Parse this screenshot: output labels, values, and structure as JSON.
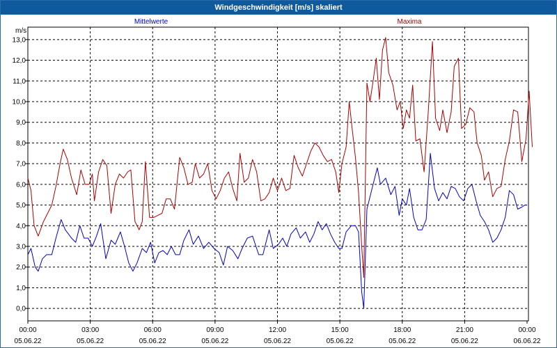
{
  "window": {
    "title": "Windgeschwindigkeit [m/s] skaliert"
  },
  "chart_data": {
    "type": "line",
    "title": "Windgeschwindigkeit [m/s] skaliert",
    "ylabel": "m/s",
    "ylim": [
      -0.6,
      13.6
    ],
    "yticks": [
      "0,0",
      "1,0",
      "2,0",
      "3,0",
      "4,0",
      "5,0",
      "6,0",
      "7,0",
      "8,0",
      "9,0",
      "10,0",
      "11,0",
      "12,0",
      "13,0"
    ],
    "xticks": [
      {
        "time": "00:00",
        "date": "05.06.22"
      },
      {
        "time": "03:00",
        "date": "05.06.22"
      },
      {
        "time": "06:00",
        "date": "05.06.22"
      },
      {
        "time": "09:00",
        "date": "05.06.22"
      },
      {
        "time": "12:00",
        "date": "05.06.22"
      },
      {
        "time": "15:00",
        "date": "05.06.22"
      },
      {
        "time": "18:00",
        "date": "05.06.22"
      },
      {
        "time": "21:00",
        "date": "05.06.22"
      },
      {
        "time": "00:00",
        "date": "06.06.22"
      }
    ],
    "xlim_hours": [
      0,
      24
    ],
    "grid": true,
    "legend_placement": "top",
    "series": [
      {
        "name": "Mittelwerte",
        "color": "#0000cc",
        "points": [
          [
            0.0,
            2.6
          ],
          [
            0.15,
            2.9
          ],
          [
            0.35,
            2.0
          ],
          [
            0.5,
            1.8
          ],
          [
            0.7,
            2.4
          ],
          [
            0.9,
            2.6
          ],
          [
            1.15,
            2.6
          ],
          [
            1.35,
            3.4
          ],
          [
            1.6,
            4.3
          ],
          [
            1.8,
            3.8
          ],
          [
            2.1,
            3.4
          ],
          [
            2.3,
            3.2
          ],
          [
            2.5,
            4.0
          ],
          [
            2.7,
            3.4
          ],
          [
            2.9,
            3.4
          ],
          [
            3.1,
            3.0
          ],
          [
            3.3,
            3.5
          ],
          [
            3.5,
            4.1
          ],
          [
            3.75,
            2.4
          ],
          [
            4.0,
            3.3
          ],
          [
            4.2,
            3.1
          ],
          [
            4.45,
            3.7
          ],
          [
            4.65,
            3.0
          ],
          [
            4.85,
            2.2
          ],
          [
            5.05,
            1.8
          ],
          [
            5.25,
            2.2
          ],
          [
            5.5,
            2.9
          ],
          [
            5.7,
            2.7
          ],
          [
            5.9,
            3.2
          ],
          [
            6.1,
            2.2
          ],
          [
            6.3,
            2.7
          ],
          [
            6.5,
            2.8
          ],
          [
            6.7,
            2.6
          ],
          [
            6.9,
            3.0
          ],
          [
            7.1,
            2.6
          ],
          [
            7.3,
            2.6
          ],
          [
            7.5,
            3.3
          ],
          [
            7.75,
            3.8
          ],
          [
            7.95,
            3.1
          ],
          [
            8.2,
            3.5
          ],
          [
            8.45,
            2.9
          ],
          [
            8.7,
            3.2
          ],
          [
            8.95,
            2.9
          ],
          [
            9.2,
            2.7
          ],
          [
            9.4,
            2.1
          ],
          [
            9.6,
            3.0
          ],
          [
            9.85,
            2.8
          ],
          [
            10.1,
            2.4
          ],
          [
            10.3,
            2.9
          ],
          [
            10.55,
            3.4
          ],
          [
            10.8,
            3.5
          ],
          [
            11.1,
            2.6
          ],
          [
            11.3,
            2.6
          ],
          [
            11.6,
            3.8
          ],
          [
            11.8,
            2.9
          ],
          [
            12.05,
            3.1
          ],
          [
            12.25,
            3.4
          ],
          [
            12.45,
            3.0
          ],
          [
            12.65,
            3.6
          ],
          [
            12.9,
            3.9
          ],
          [
            13.1,
            3.4
          ],
          [
            13.35,
            3.7
          ],
          [
            13.55,
            3.2
          ],
          [
            13.75,
            3.6
          ],
          [
            13.95,
            4.2
          ],
          [
            14.15,
            3.8
          ],
          [
            14.35,
            4.1
          ],
          [
            14.55,
            3.6
          ],
          [
            14.75,
            3.2
          ],
          [
            14.95,
            2.9
          ],
          [
            15.1,
            2.9
          ],
          [
            15.3,
            3.7
          ],
          [
            15.55,
            4.0
          ],
          [
            15.75,
            4.0
          ],
          [
            15.9,
            3.7
          ],
          [
            16.05,
            0.8
          ],
          [
            16.15,
            0.0
          ],
          [
            16.3,
            4.8
          ],
          [
            16.55,
            5.8
          ],
          [
            16.8,
            6.8
          ],
          [
            16.95,
            6.0
          ],
          [
            17.2,
            6.3
          ],
          [
            17.45,
            5.5
          ],
          [
            17.65,
            5.9
          ],
          [
            17.85,
            4.5
          ],
          [
            18.0,
            5.3
          ],
          [
            18.2,
            5.0
          ],
          [
            18.35,
            5.8
          ],
          [
            18.55,
            4.4
          ],
          [
            18.75,
            3.8
          ],
          [
            18.95,
            3.8
          ],
          [
            19.15,
            4.3
          ],
          [
            19.35,
            7.5
          ],
          [
            19.55,
            5.8
          ],
          [
            19.75,
            5.2
          ],
          [
            19.95,
            5.6
          ],
          [
            20.15,
            5.3
          ],
          [
            20.35,
            5.9
          ],
          [
            20.55,
            5.8
          ],
          [
            20.75,
            5.4
          ],
          [
            20.95,
            5.2
          ],
          [
            21.15,
            5.8
          ],
          [
            21.35,
            6.0
          ],
          [
            21.55,
            5.2
          ],
          [
            21.75,
            4.5
          ],
          [
            21.95,
            4.2
          ],
          [
            22.15,
            3.8
          ],
          [
            22.35,
            3.2
          ],
          [
            22.55,
            3.4
          ],
          [
            22.75,
            3.8
          ],
          [
            22.95,
            4.4
          ],
          [
            23.15,
            5.7
          ],
          [
            23.35,
            5.5
          ],
          [
            23.55,
            4.8
          ],
          [
            23.75,
            4.9
          ],
          [
            23.9,
            5.0
          ],
          [
            24.0,
            5.0
          ]
        ]
      },
      {
        "name": "Maxima",
        "color": "#aa0000",
        "points": [
          [
            0.0,
            6.3
          ],
          [
            0.15,
            5.7
          ],
          [
            0.3,
            4.0
          ],
          [
            0.5,
            3.5
          ],
          [
            0.75,
            4.2
          ],
          [
            0.95,
            4.6
          ],
          [
            1.15,
            5.0
          ],
          [
            1.35,
            5.9
          ],
          [
            1.55,
            7.0
          ],
          [
            1.7,
            7.7
          ],
          [
            1.9,
            7.2
          ],
          [
            2.1,
            6.3
          ],
          [
            2.35,
            5.5
          ],
          [
            2.55,
            6.7
          ],
          [
            2.75,
            6.0
          ],
          [
            2.95,
            6.0
          ],
          [
            3.1,
            6.5
          ],
          [
            3.2,
            5.2
          ],
          [
            3.4,
            6.6
          ],
          [
            3.6,
            7.2
          ],
          [
            3.8,
            6.9
          ],
          [
            4.0,
            4.6
          ],
          [
            4.2,
            6.0
          ],
          [
            4.4,
            6.5
          ],
          [
            4.6,
            6.3
          ],
          [
            4.8,
            6.6
          ],
          [
            4.95,
            6.7
          ],
          [
            5.15,
            4.2
          ],
          [
            5.35,
            3.8
          ],
          [
            5.5,
            4.2
          ],
          [
            5.65,
            7.1
          ],
          [
            5.85,
            4.4
          ],
          [
            6.05,
            4.4
          ],
          [
            6.25,
            4.5
          ],
          [
            6.45,
            4.6
          ],
          [
            6.65,
            5.3
          ],
          [
            6.85,
            5.3
          ],
          [
            7.05,
            4.8
          ],
          [
            7.3,
            7.3
          ],
          [
            7.5,
            6.8
          ],
          [
            7.7,
            6.0
          ],
          [
            7.9,
            6.1
          ],
          [
            8.05,
            7.0
          ],
          [
            8.25,
            6.3
          ],
          [
            8.45,
            6.5
          ],
          [
            8.65,
            7.0
          ],
          [
            8.85,
            5.7
          ],
          [
            9.05,
            5.3
          ],
          [
            9.25,
            5.7
          ],
          [
            9.45,
            6.3
          ],
          [
            9.65,
            6.6
          ],
          [
            9.85,
            5.8
          ],
          [
            10.05,
            5.2
          ],
          [
            10.2,
            7.5
          ],
          [
            10.4,
            6.1
          ],
          [
            10.6,
            6.3
          ],
          [
            10.8,
            7.2
          ],
          [
            11.0,
            6.6
          ],
          [
            11.2,
            5.2
          ],
          [
            11.4,
            5.3
          ],
          [
            11.6,
            5.6
          ],
          [
            11.8,
            6.3
          ],
          [
            12.0,
            5.7
          ],
          [
            12.2,
            6.3
          ],
          [
            12.4,
            5.7
          ],
          [
            12.6,
            5.8
          ],
          [
            12.8,
            7.4
          ],
          [
            13.0,
            6.8
          ],
          [
            13.2,
            6.4
          ],
          [
            13.4,
            7.0
          ],
          [
            13.6,
            7.6
          ],
          [
            13.8,
            8.0
          ],
          [
            14.0,
            7.8
          ],
          [
            14.2,
            7.4
          ],
          [
            14.4,
            7.1
          ],
          [
            14.6,
            7.2
          ],
          [
            14.8,
            6.6
          ],
          [
            14.95,
            5.6
          ],
          [
            15.1,
            7.0
          ],
          [
            15.3,
            7.8
          ],
          [
            15.45,
            10.0
          ],
          [
            15.6,
            8.6
          ],
          [
            15.75,
            7.3
          ],
          [
            15.9,
            5.6
          ],
          [
            16.05,
            3.0
          ],
          [
            16.15,
            1.5
          ],
          [
            16.3,
            10.9
          ],
          [
            16.45,
            10.0
          ],
          [
            16.6,
            11.0
          ],
          [
            16.75,
            12.1
          ],
          [
            16.9,
            10.1
          ],
          [
            17.05,
            12.5
          ],
          [
            17.2,
            13.1
          ],
          [
            17.35,
            11.4
          ],
          [
            17.55,
            10.8
          ],
          [
            17.75,
            9.6
          ],
          [
            17.9,
            10.0
          ],
          [
            18.05,
            8.7
          ],
          [
            18.2,
            9.6
          ],
          [
            18.35,
            9.2
          ],
          [
            18.5,
            10.8
          ],
          [
            18.65,
            8.1
          ],
          [
            18.85,
            8.2
          ],
          [
            19.05,
            6.6
          ],
          [
            19.25,
            9.5
          ],
          [
            19.45,
            12.9
          ],
          [
            19.6,
            9.2
          ],
          [
            19.8,
            8.6
          ],
          [
            19.95,
            9.6
          ],
          [
            20.15,
            8.5
          ],
          [
            20.35,
            9.5
          ],
          [
            20.5,
            11.7
          ],
          [
            20.7,
            12.1
          ],
          [
            20.85,
            8.7
          ],
          [
            21.05,
            8.9
          ],
          [
            21.25,
            9.7
          ],
          [
            21.45,
            9.5
          ],
          [
            21.6,
            8.0
          ],
          [
            21.8,
            7.4
          ],
          [
            21.95,
            6.2
          ],
          [
            22.15,
            6.6
          ],
          [
            22.35,
            5.4
          ],
          [
            22.55,
            5.8
          ],
          [
            22.75,
            5.9
          ],
          [
            22.95,
            7.2
          ],
          [
            23.15,
            8.1
          ],
          [
            23.35,
            9.6
          ],
          [
            23.55,
            9.5
          ],
          [
            23.75,
            7.1
          ],
          [
            23.95,
            8.2
          ],
          [
            24.1,
            10.5
          ],
          [
            24.25,
            7.8
          ]
        ]
      }
    ]
  }
}
